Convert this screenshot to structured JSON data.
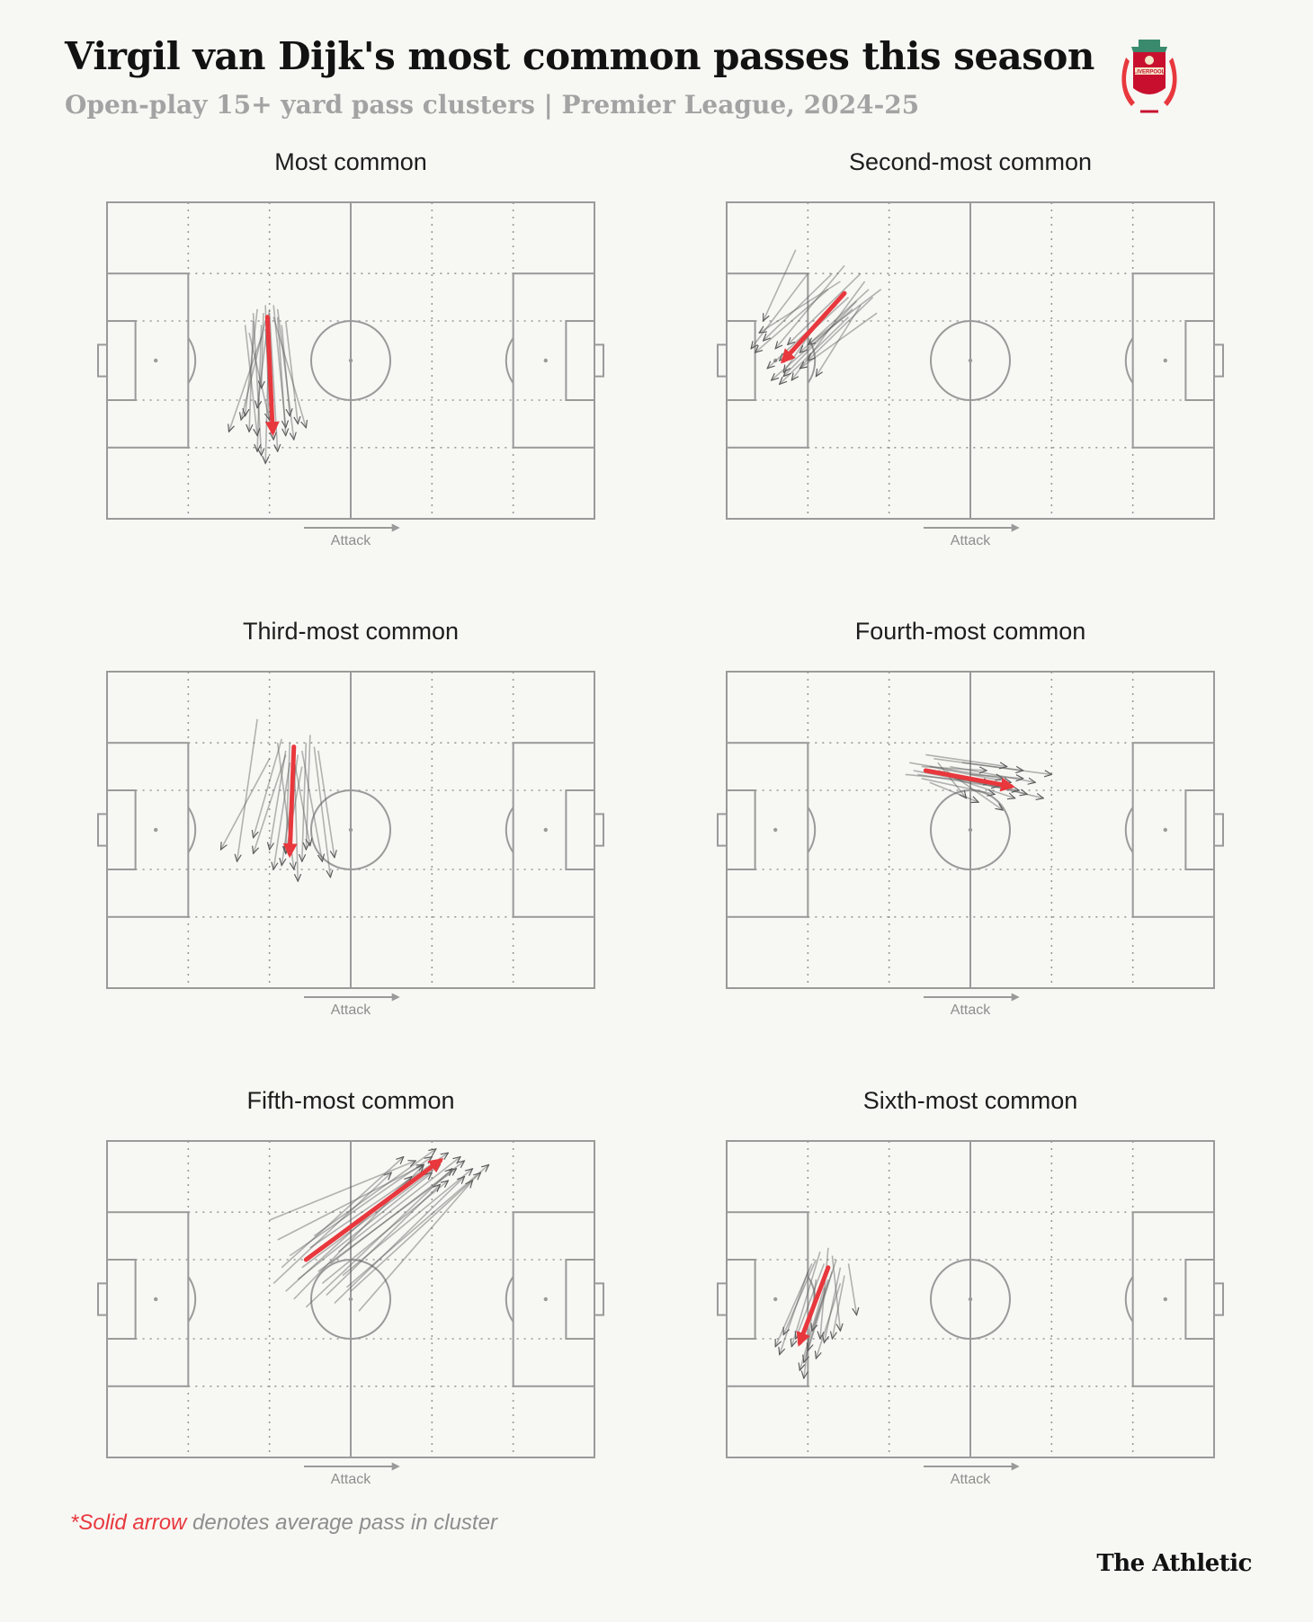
{
  "header": {
    "title": "Virgil van Dijk's most common passes this season",
    "subtitle": "Open-play 15+ yard pass clusters | Premier League, 2024-25",
    "crest_text": "LIVERPOOL"
  },
  "footnote": {
    "accent": "*Solid arrow",
    "rest": " denotes average pass in cluster"
  },
  "brand": "The Athletic",
  "colors": {
    "background": "#f7f7f4",
    "pitch_lines": "#9a9a9a",
    "average_arrow": "#e8383d",
    "pass_arrows": "#5a5a5a"
  },
  "chart_data": [
    {
      "type": "scatter",
      "title": "Most common",
      "axis_label": "Attack",
      "pitch_x_range": [
        0,
        120
      ],
      "pitch_y_range": [
        0,
        80
      ],
      "average_pass": {
        "from": [
          39.5,
          29
        ],
        "to": [
          40.8,
          58
        ]
      },
      "passes": [
        [
          38.5,
          28,
          38,
          47
        ],
        [
          39,
          30,
          33,
          55
        ],
        [
          40,
          27,
          37,
          52
        ],
        [
          41,
          26,
          44,
          57
        ],
        [
          36,
          30,
          35,
          58
        ],
        [
          42,
          29,
          44,
          59
        ],
        [
          38,
          31,
          37,
          63
        ],
        [
          44,
          30,
          47,
          56
        ],
        [
          35,
          33,
          40,
          55
        ],
        [
          40,
          28,
          42,
          63
        ],
        [
          37,
          27,
          34,
          54
        ],
        [
          39,
          32,
          41,
          60
        ],
        [
          41,
          29,
          49,
          57
        ],
        [
          36,
          28,
          38,
          64
        ],
        [
          43,
          31,
          45,
          54
        ],
        [
          38,
          34,
          30,
          58
        ],
        [
          40,
          30,
          39,
          66
        ],
        [
          34,
          31,
          37,
          59
        ],
        [
          42,
          27,
          46,
          60
        ],
        [
          39,
          26,
          40,
          57
        ]
      ]
    },
    {
      "type": "scatter",
      "title": "Second-most common",
      "axis_label": "Attack",
      "pitch_x_range": [
        0,
        120
      ],
      "pitch_y_range": [
        0,
        80
      ],
      "average_pass": {
        "from": [
          29,
          23
        ],
        "to": [
          14,
          40
        ]
      },
      "passes": [
        [
          28,
          20,
          8,
          33
        ],
        [
          30,
          24,
          13,
          40
        ],
        [
          33,
          18,
          15,
          36
        ],
        [
          27,
          26,
          10,
          42
        ],
        [
          35,
          22,
          18,
          38
        ],
        [
          32,
          25,
          14,
          44
        ],
        [
          29,
          16,
          12,
          37
        ],
        [
          37,
          28,
          18,
          42
        ],
        [
          25,
          22,
          7,
          38
        ],
        [
          34,
          20,
          16,
          45
        ],
        [
          31,
          27,
          11,
          45
        ],
        [
          26,
          18,
          9,
          35
        ],
        [
          36,
          24,
          20,
          40
        ],
        [
          30,
          29,
          13,
          46
        ],
        [
          38,
          22,
          20,
          36
        ],
        [
          17,
          12,
          9,
          30
        ],
        [
          24,
          28,
          14,
          43
        ],
        [
          33,
          26,
          22,
          44
        ],
        [
          20,
          18,
          6,
          37
        ]
      ]
    },
    {
      "type": "scatter",
      "title": "Third-most common",
      "axis_label": "Attack",
      "pitch_x_range": [
        0,
        120
      ],
      "pitch_y_range": [
        0,
        80
      ],
      "average_pass": {
        "from": [
          46,
          19
        ],
        "to": [
          45,
          46
        ]
      },
      "passes": [
        [
          45,
          18,
          44,
          46
        ],
        [
          47,
          21,
          43,
          49
        ],
        [
          44,
          20,
          40,
          45
        ],
        [
          49,
          18,
          48,
          48
        ],
        [
          46,
          22,
          50,
          44
        ],
        [
          43,
          17,
          36,
          42
        ],
        [
          48,
          20,
          53,
          48
        ],
        [
          45,
          23,
          41,
          50
        ],
        [
          50,
          16,
          49,
          45
        ],
        [
          37,
          12,
          32,
          48
        ],
        [
          46,
          19,
          47,
          53
        ],
        [
          44,
          21,
          36,
          46
        ],
        [
          51,
          19,
          55,
          52
        ],
        [
          42,
          18,
          46,
          50
        ],
        [
          52,
          20,
          56,
          47
        ],
        [
          48,
          24,
          44,
          46
        ],
        [
          40,
          22,
          28,
          45
        ]
      ]
    },
    {
      "type": "scatter",
      "title": "Fourth-most common",
      "axis_label": "Attack",
      "pitch_x_range": [
        0,
        120
      ],
      "pitch_y_range": [
        0,
        80
      ],
      "average_pass": {
        "from": [
          49,
          25
        ],
        "to": [
          70,
          29
        ]
      },
      "passes": [
        [
          50,
          24,
          70,
          28
        ],
        [
          47,
          26,
          72,
          30
        ],
        [
          45,
          23,
          68,
          27
        ],
        [
          52,
          25,
          74,
          31
        ],
        [
          48,
          27,
          66,
          31
        ],
        [
          55,
          24,
          76,
          28
        ],
        [
          51,
          22,
          73,
          25
        ],
        [
          46,
          25,
          67,
          29
        ],
        [
          53,
          26,
          78,
          32
        ],
        [
          49,
          21,
          69,
          24
        ],
        [
          56,
          27,
          71,
          32
        ],
        [
          44,
          26,
          65,
          28
        ],
        [
          58,
          23,
          80,
          26
        ],
        [
          50,
          28,
          62,
          33
        ],
        [
          54,
          25,
          68,
          35
        ],
        [
          60,
          26,
          73,
          27
        ],
        [
          52,
          23,
          59,
          32
        ],
        [
          48,
          24,
          64,
          25
        ]
      ]
    },
    {
      "type": "scatter",
      "title": "Fifth-most common",
      "axis_label": "Attack",
      "pitch_x_range": [
        0,
        120
      ],
      "pitch_y_range": [
        0,
        80
      ],
      "average_pass": {
        "from": [
          49,
          30
        ],
        "to": [
          82,
          5
        ]
      },
      "passes": [
        [
          48,
          32,
          82,
          6
        ],
        [
          45,
          29,
          80,
          4
        ],
        [
          52,
          33,
          86,
          7
        ],
        [
          42,
          25,
          78,
          6
        ],
        [
          55,
          31,
          88,
          5
        ],
        [
          47,
          35,
          80,
          8
        ],
        [
          50,
          27,
          84,
          3
        ],
        [
          40,
          20,
          76,
          5
        ],
        [
          58,
          34,
          90,
          7
        ],
        [
          44,
          38,
          75,
          9
        ],
        [
          53,
          36,
          84,
          10
        ],
        [
          46,
          40,
          78,
          6
        ],
        [
          56,
          41,
          88,
          9
        ],
        [
          51,
          24,
          81,
          2
        ],
        [
          60,
          38,
          92,
          8
        ],
        [
          49,
          42,
          85,
          7
        ],
        [
          43,
          32,
          73,
          4
        ],
        [
          57,
          28,
          87,
          4
        ],
        [
          41,
          36,
          70,
          8
        ],
        [
          54,
          39,
          82,
          11
        ],
        [
          62,
          43,
          90,
          10
        ],
        [
          59,
          37,
          94,
          6
        ]
      ]
    },
    {
      "type": "scatter",
      "title": "Sixth-most common",
      "axis_label": "Attack",
      "pitch_x_range": [
        0,
        120
      ],
      "pitch_y_range": [
        0,
        80
      ],
      "average_pass": {
        "from": [
          25,
          32
        ],
        "to": [
          18,
          51
        ]
      },
      "passes": [
        [
          24,
          31,
          17,
          50
        ],
        [
          26,
          33,
          20,
          53
        ],
        [
          22,
          30,
          14,
          49
        ],
        [
          28,
          32,
          24,
          51
        ],
        [
          25,
          35,
          19,
          56
        ],
        [
          23,
          28,
          16,
          52
        ],
        [
          27,
          30,
          21,
          48
        ],
        [
          20,
          33,
          13,
          54
        ],
        [
          29,
          34,
          26,
          50
        ],
        [
          24,
          37,
          18,
          58
        ],
        [
          26,
          29,
          28,
          48
        ],
        [
          21,
          31,
          12,
          52
        ],
        [
          30,
          31,
          32,
          44
        ],
        [
          22,
          35,
          19,
          60
        ],
        [
          25,
          27,
          23,
          50
        ],
        [
          28,
          36,
          22,
          55
        ]
      ]
    }
  ]
}
